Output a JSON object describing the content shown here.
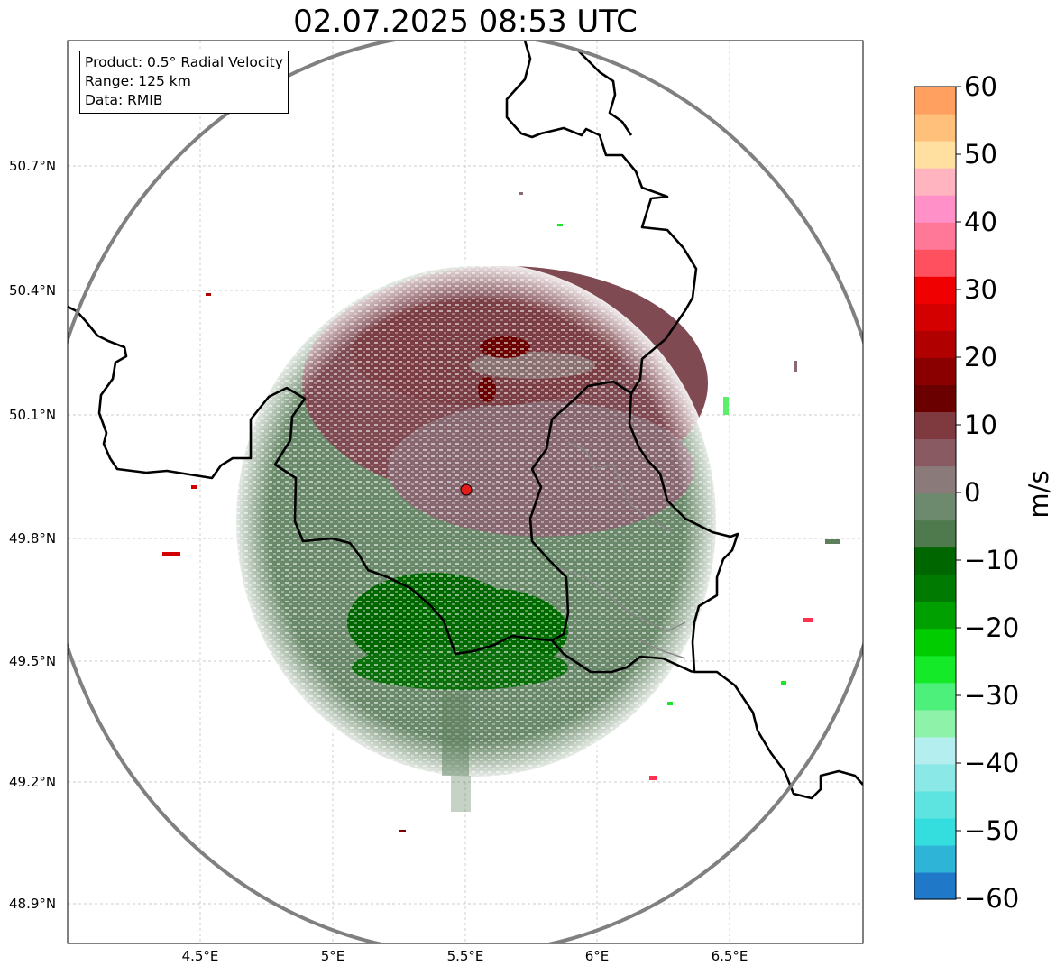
{
  "title": "02.07.2025 08:53 UTC",
  "info": {
    "product": "Product: 0.5° Radial Velocity",
    "range": "Range: 125 km",
    "data": "Data: RMIB"
  },
  "axes": {
    "x_ticks": [
      "4.5°E",
      "5°E",
      "5.5°E",
      "6°E",
      "6.5°E"
    ],
    "y_ticks": [
      "50.7°N",
      "50.4°N",
      "50.1°N",
      "49.8°N",
      "49.5°N",
      "49.2°N",
      "48.9°N"
    ]
  },
  "colorbar": {
    "unit": "m/s",
    "ticks": [
      "60",
      "50",
      "40",
      "30",
      "20",
      "10",
      "0",
      "−10",
      "−20",
      "−30",
      "−40",
      "−50",
      "−60"
    ],
    "range": [
      -60,
      60
    ],
    "colors": [
      "#1f78c8",
      "#2db4d6",
      "#34dede",
      "#5ee4e0",
      "#8ae8e6",
      "#b5eeee",
      "#8ef2a8",
      "#4cf07a",
      "#14ea28",
      "#00cc00",
      "#00a000",
      "#007a00",
      "#006600",
      "#4e7a4e",
      "#6e8a6e",
      "#8a7a7a",
      "#8a5a62",
      "#7e3a3e",
      "#6a0000",
      "#8a0000",
      "#b00000",
      "#d40000",
      "#f00000",
      "#ff5060",
      "#ff7898",
      "#ff90c8",
      "#ffb4c0",
      "#ffe0a0",
      "#ffc07c",
      "#ffa060"
    ]
  },
  "radar": {
    "site_marker": "red-dot-radar-site",
    "range_ring": "gray",
    "colors": {
      "approaching": "#006600",
      "light_approaching": "#5a7f5a",
      "receding": "#7a4048",
      "light_receding": "#8a6a72"
    }
  }
}
